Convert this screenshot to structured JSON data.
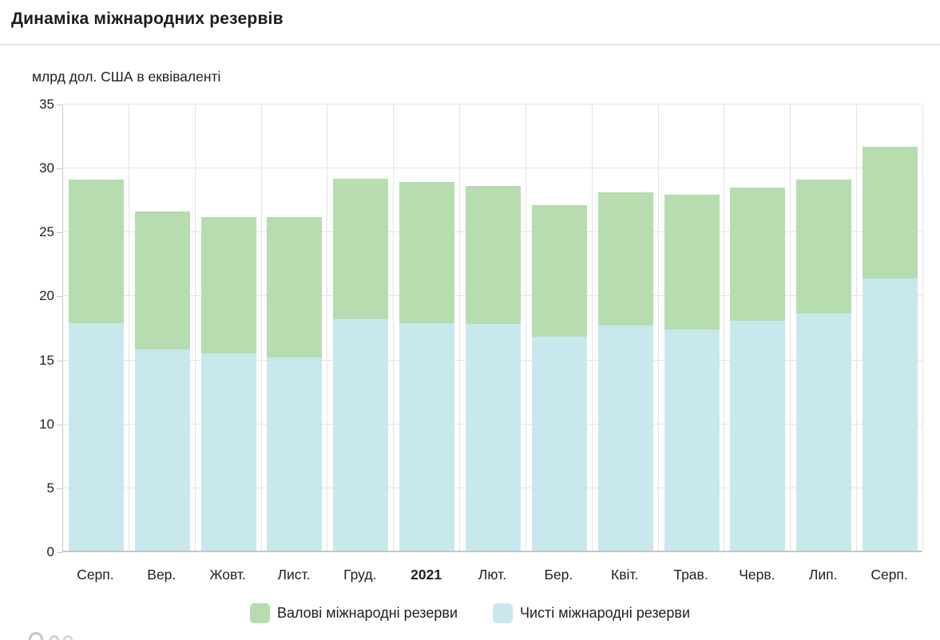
{
  "header": {
    "title": "Динаміка міжнародних резервів"
  },
  "chart_data": {
    "type": "bar",
    "subtype": "overlay",
    "title": "Динаміка міжнародних резервів",
    "unit_label": "млрд дол. США в еквіваленті",
    "categories": [
      "Серп.",
      "Вер.",
      "Жовт.",
      "Лист.",
      "Груд.",
      "2021",
      "Лют.",
      "Бер.",
      "Квіт.",
      "Трав.",
      "Черв.",
      "Лип.",
      "Серп."
    ],
    "bold_category": "2021",
    "series": [
      {
        "name": "Валові міжнародні резерви",
        "color": "#b6dcb0",
        "values": [
          29.0,
          26.5,
          26.1,
          26.1,
          29.1,
          28.8,
          28.5,
          27.0,
          28.0,
          27.8,
          28.4,
          29.0,
          31.6
        ]
      },
      {
        "name": "Чисті міжнародні резерви",
        "color": "#c8e8ee",
        "values": [
          17.8,
          15.7,
          15.4,
          15.1,
          18.1,
          17.8,
          17.7,
          16.7,
          17.6,
          17.3,
          18.0,
          18.5,
          21.3
        ]
      }
    ],
    "ylim": [
      0,
      35
    ],
    "yticks": [
      0,
      5,
      10,
      15,
      20,
      25,
      30,
      35
    ],
    "grid": true,
    "legend_position": "bottom",
    "colors": {
      "text": "#212121",
      "gridline": "#e4e4e4",
      "axis": "#c6c6c6",
      "gross_fill": "#b6dcb0",
      "net_fill": "#c8e8ee"
    }
  }
}
